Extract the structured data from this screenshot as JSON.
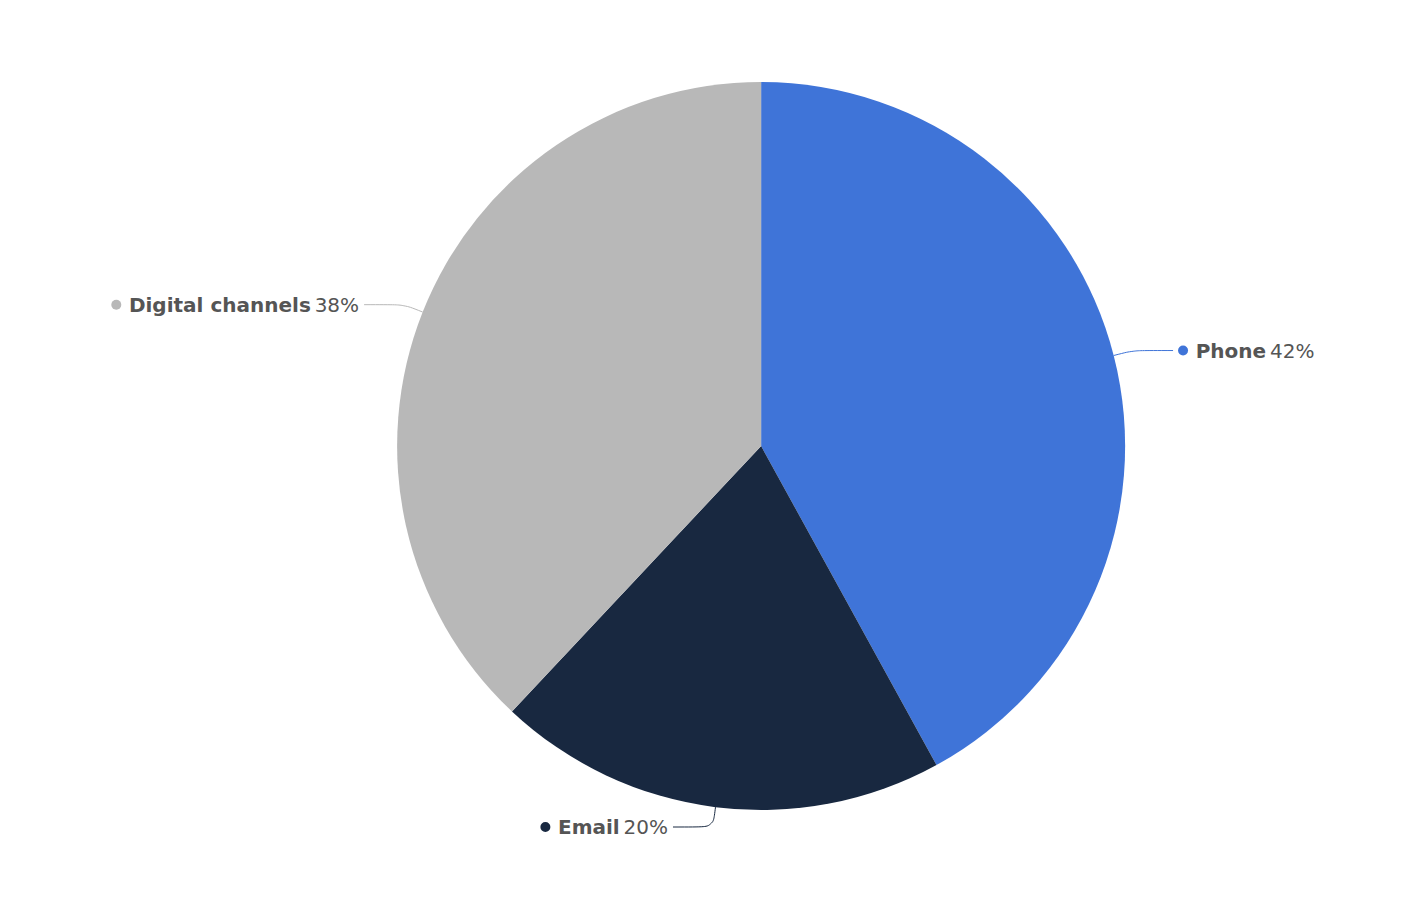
{
  "chart_data": {
    "type": "pie",
    "categories": [
      "Phone",
      "Email",
      "Digital channels"
    ],
    "values": [
      42,
      20,
      38
    ],
    "value_labels": [
      "42%",
      "20%",
      "38%"
    ],
    "colors": [
      "#3f74d8",
      "#182840",
      "#b8b8b8"
    ],
    "data_labels": true
  }
}
